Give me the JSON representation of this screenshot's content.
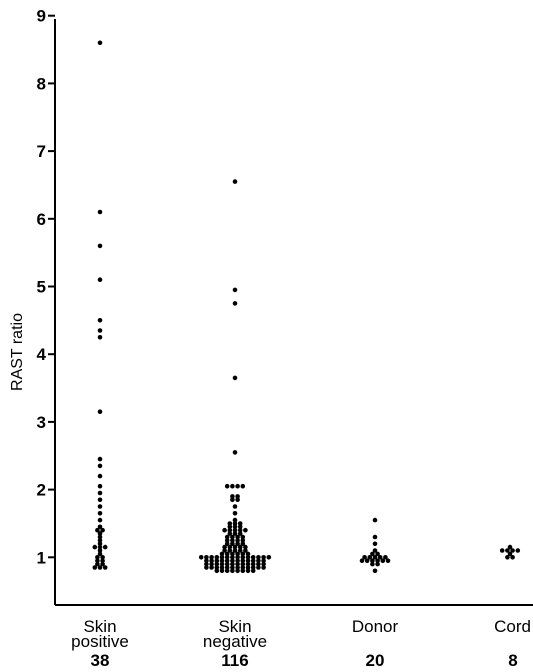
{
  "chart_data": {
    "type": "scatter",
    "subtype": "dot-strip",
    "title": "",
    "xlabel": "",
    "ylabel": "RAST ratio",
    "ylim": [
      0,
      9
    ],
    "yticks": [
      "1",
      "2",
      "3",
      "4",
      "5",
      "6",
      "7",
      "8",
      "9"
    ],
    "grid": false,
    "legend": "none",
    "groups": [
      {
        "label_lines": [
          "Skin",
          "positive"
        ],
        "n": "38",
        "values": [
          8.6,
          6.1,
          5.6,
          5.1,
          4.5,
          4.35,
          4.25,
          3.15,
          2.45,
          2.35,
          2.2,
          2.05,
          1.95,
          1.85,
          1.75,
          1.65,
          1.55,
          1.45,
          1.4,
          1.4,
          1.35,
          1.3,
          1.25,
          1.2,
          1.15,
          1.15,
          1.15,
          1.1,
          1.05,
          1.0,
          1.0,
          0.95,
          0.95,
          0.9,
          0.9,
          0.85,
          0.85,
          0.85
        ]
      },
      {
        "label_lines": [
          "Skin",
          "negative"
        ],
        "n": "116",
        "values": [
          6.55,
          4.95,
          4.75,
          3.65,
          2.55,
          2.05,
          2.05,
          2.05,
          2.05,
          1.9,
          1.9,
          1.85,
          1.85,
          1.75,
          1.65,
          1.55,
          1.5,
          1.5,
          1.5,
          1.45,
          1.45,
          1.45,
          1.4,
          1.4,
          1.4,
          1.4,
          1.4,
          1.35,
          1.35,
          1.35,
          1.3,
          1.3,
          1.3,
          1.3,
          1.25,
          1.25,
          1.25,
          1.25,
          1.2,
          1.2,
          1.2,
          1.2,
          1.15,
          1.15,
          1.15,
          1.15,
          1.15,
          1.1,
          1.1,
          1.1,
          1.1,
          1.1,
          1.05,
          1.05,
          1.05,
          1.05,
          1.05,
          1.05,
          1.0,
          1.0,
          1.0,
          1.0,
          1.0,
          1.0,
          1.0,
          1.0,
          1.0,
          1.0,
          1.0,
          1.0,
          1.0,
          1.0,
          0.95,
          0.95,
          0.95,
          0.95,
          0.95,
          0.95,
          0.95,
          0.95,
          0.95,
          0.95,
          0.95,
          0.95,
          0.9,
          0.9,
          0.9,
          0.9,
          0.9,
          0.9,
          0.9,
          0.9,
          0.9,
          0.9,
          0.9,
          0.9,
          0.85,
          0.85,
          0.85,
          0.85,
          0.85,
          0.85,
          0.85,
          0.85,
          0.85,
          0.85,
          0.85,
          0.85,
          0.8,
          0.8,
          0.8,
          0.8,
          0.8,
          0.8,
          0.8,
          0.8
        ]
      },
      {
        "label_lines": [
          "Donor"
        ],
        "n": "20",
        "values": [
          1.55,
          1.3,
          1.2,
          1.1,
          1.05,
          1.05,
          1.0,
          1.0,
          1.0,
          1.0,
          1.0,
          0.95,
          0.95,
          0.95,
          0.95,
          0.95,
          0.95,
          0.9,
          0.9,
          0.8
        ]
      },
      {
        "label_lines": [
          "Cord"
        ],
        "n": "8",
        "values": [
          1.15,
          1.1,
          1.1,
          1.1,
          1.1,
          1.05,
          1.0,
          1.0
        ]
      }
    ]
  }
}
